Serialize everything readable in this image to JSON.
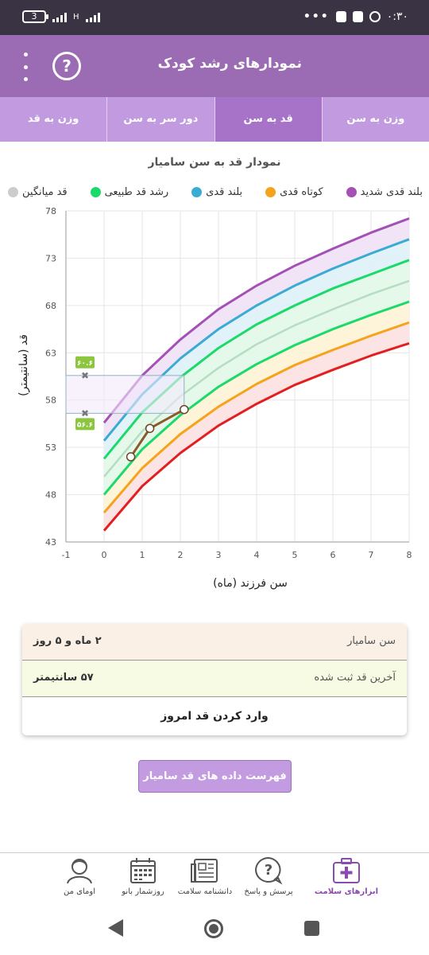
{
  "status_bar": {
    "battery": "3",
    "network": "H",
    "time": "۰:۳۰",
    "overflow": "•••"
  },
  "header": {
    "title": "نمودارهای رشد کودک",
    "help_label": "?"
  },
  "tabs": [
    {
      "label": "وزن به سن",
      "active": false
    },
    {
      "label": "قد به سن",
      "active": true
    },
    {
      "label": "دور سر به سن",
      "active": false
    },
    {
      "label": "وزن به قد",
      "active": false
    }
  ],
  "chart_title": "نمودار قد به سن سامیار",
  "legend": [
    {
      "label": "بلند قدی شدید",
      "color": "#a550b5"
    },
    {
      "label": "کوتاه قدی",
      "color": "#f5a31a"
    },
    {
      "label": "بلند قدی",
      "color": "#3aabd2"
    },
    {
      "label": "رشد قد طبیعی",
      "color": "#1bd96a"
    },
    {
      "label": "قد میانگین",
      "color": "#cccccc"
    }
  ],
  "chart_data": {
    "type": "line",
    "xlabel": "سن فرزند (ماه)",
    "ylabel": "قد (سانتیمتر)",
    "xlim": [
      -1,
      8
    ],
    "ylim": [
      43,
      78
    ],
    "xticks": [
      -1,
      0,
      1,
      2,
      3,
      4,
      5,
      6,
      7,
      8
    ],
    "yticks": [
      43,
      48,
      53,
      58,
      63,
      68,
      73,
      78
    ],
    "grid": true,
    "x": [
      0,
      1,
      2,
      3,
      4,
      5,
      6,
      7,
      8
    ],
    "series": [
      {
        "key": "p3sd",
        "color": "#a550b5",
        "values": [
          55.6,
          60.6,
          64.4,
          67.6,
          70.1,
          72.2,
          74.0,
          75.7,
          77.2
        ]
      },
      {
        "key": "p2sd",
        "color": "#3aabd2",
        "values": [
          53.7,
          58.6,
          62.4,
          65.5,
          68.0,
          70.1,
          71.9,
          73.5,
          75.0
        ]
      },
      {
        "key": "p1sd",
        "color": "#1bd96a",
        "values": [
          51.8,
          56.7,
          60.4,
          63.5,
          66.0,
          68.0,
          69.8,
          71.3,
          72.8
        ]
      },
      {
        "key": "median",
        "color": "#b6dcc2",
        "values": [
          49.9,
          54.7,
          58.4,
          61.4,
          63.9,
          65.9,
          67.6,
          69.2,
          70.6
        ]
      },
      {
        "key": "m1sd",
        "color": "#1bd96a",
        "values": [
          48.0,
          52.8,
          56.4,
          59.4,
          61.8,
          63.8,
          65.5,
          67.0,
          68.4
        ]
      },
      {
        "key": "m2sd",
        "color": "#f5a31a",
        "values": [
          46.1,
          50.8,
          54.4,
          57.3,
          59.7,
          61.7,
          63.3,
          64.8,
          66.2
        ]
      },
      {
        "key": "m3sd",
        "color": "#e41e1e",
        "values": [
          44.2,
          48.9,
          52.4,
          55.3,
          57.6,
          59.6,
          61.2,
          62.7,
          64.0
        ]
      }
    ],
    "child_points": [
      {
        "x": 0.7,
        "y": 52.0
      },
      {
        "x": 1.2,
        "y": 55.0
      },
      {
        "x": 2.1,
        "y": 57.0
      }
    ],
    "target_range": {
      "upper": 60.6,
      "lower": 56.6,
      "upper_label": "۶۰.۶",
      "lower_label": "۵۶.۶",
      "x_start": -1,
      "x_end": 2.1,
      "x_marker": -0.5,
      "fill": "#f4eafb",
      "stroke": "#8fb0c8"
    }
  },
  "info": {
    "age_label": "سن سامیار",
    "age_value": "۲ ماه و ۵ روز",
    "last_height_label": "آخرین قد ثبت شده",
    "last_height_value": "۵۷ سانتیمتر",
    "enter_button": "وارد کردن قد امروز"
  },
  "list_button": "فهرست داده های قد سامیار",
  "bottom_nav": [
    {
      "label": "ابزارهای سلامت",
      "icon": "medical-kit-icon",
      "active": true
    },
    {
      "label": "پرسش و پاسخ",
      "icon": "question-bubble-icon",
      "active": false
    },
    {
      "label": "دانشنامه سلامت",
      "icon": "newspaper-icon",
      "active": false
    },
    {
      "label": "روزشمار بانو",
      "icon": "calendar-icon",
      "active": false
    },
    {
      "label": "اومای من",
      "icon": "user-profile-icon",
      "active": false
    }
  ]
}
